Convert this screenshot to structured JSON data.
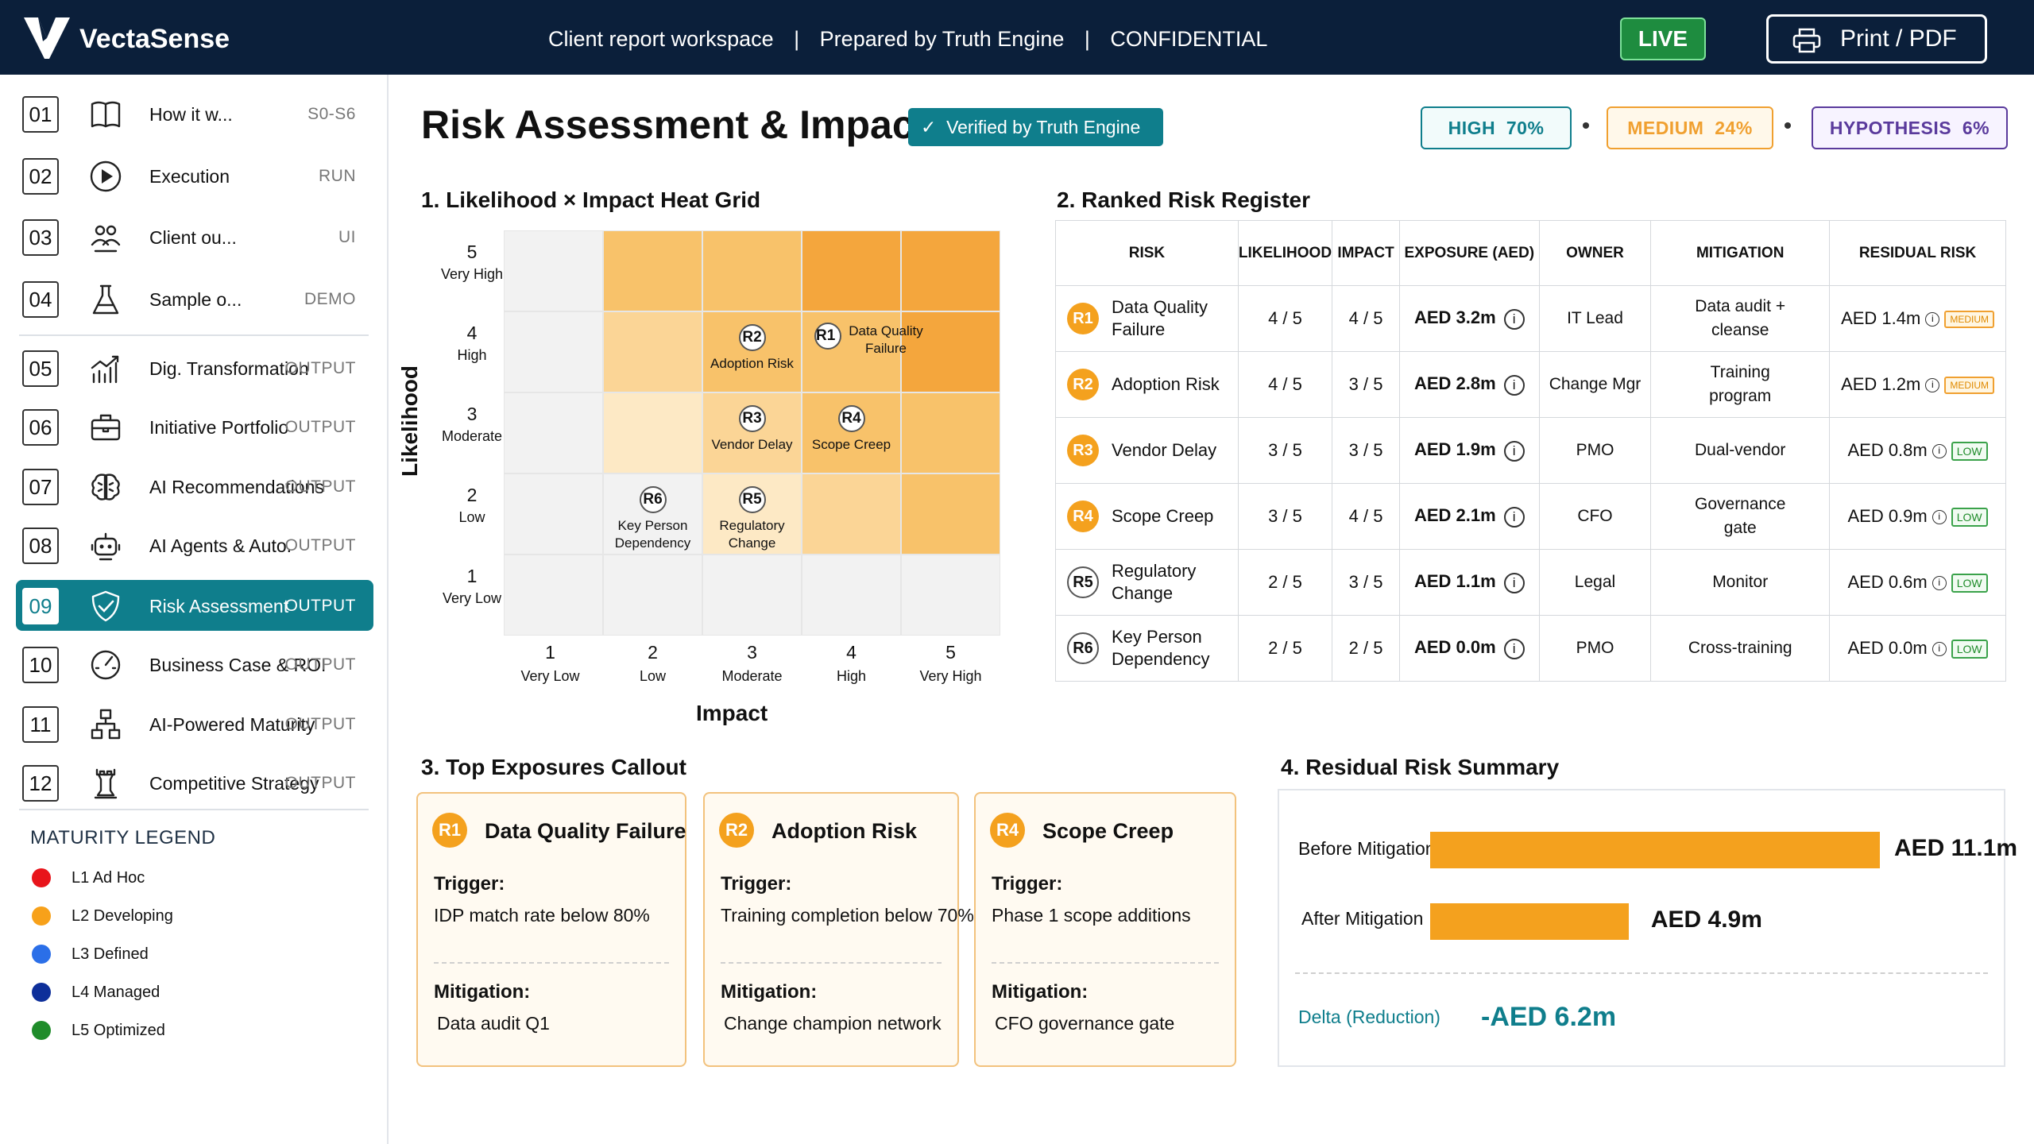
{
  "header": {
    "brand": "VectaSense",
    "context_parts": [
      "Client report workspace",
      "|",
      "Prepared by Truth Engine",
      "|",
      "CONFIDENTIAL"
    ],
    "live_label": "LIVE",
    "print_label": "Print / PDF",
    "logo_icon": "vectasense-logo",
    "print_icon": "printer-icon"
  },
  "sidebar": {
    "items": [
      {
        "num": "01",
        "label": "How it w...",
        "tag": "S0-S6",
        "icon": "book-icon"
      },
      {
        "num": "02",
        "label": "Execution",
        "tag": "RUN",
        "icon": "play-icon"
      },
      {
        "num": "03",
        "label": "Client ou...",
        "tag": "UI",
        "icon": "users-icon"
      },
      {
        "num": "04",
        "label": "Sample o...",
        "tag": "DEMO",
        "icon": "flask-icon"
      },
      {
        "num": "05",
        "label": "Dig. Transformation",
        "tag": "OUTPUT",
        "icon": "chart-up-icon"
      },
      {
        "num": "06",
        "label": "Initiative Portfolio",
        "tag": "OUTPUT",
        "icon": "briefcase-icon"
      },
      {
        "num": "07",
        "label": "AI Recommendations",
        "tag": "OUTPUT",
        "icon": "brain-icon"
      },
      {
        "num": "08",
        "label": "AI Agents & Auto.",
        "tag": "OUTPUT",
        "icon": "robot-icon"
      },
      {
        "num": "09",
        "label": "Risk Assessment",
        "tag": "OUTPUT",
        "icon": "shield-check-icon",
        "active": true
      },
      {
        "num": "10",
        "label": "Business Case & ROI",
        "tag": "OUTPUT",
        "icon": "gauge-icon"
      },
      {
        "num": "11",
        "label": "AI-Powered Maturity",
        "tag": "OUTPUT",
        "icon": "hierarchy-icon"
      },
      {
        "num": "12",
        "label": "Competitive Strategy",
        "tag": "OUTPUT",
        "icon": "chess-rook-icon"
      }
    ],
    "legend_title": "MATURITY LEGEND",
    "legend": [
      {
        "label": "L1 Ad Hoc",
        "color": "#e8141b"
      },
      {
        "label": "L2 Developing",
        "color": "#f7a11a"
      },
      {
        "label": "L3 Defined",
        "color": "#2b6fe8"
      },
      {
        "label": "L4 Managed",
        "color": "#0e2f9a"
      },
      {
        "label": "L5 Optimized",
        "color": "#1f8c2a"
      }
    ]
  },
  "page": {
    "title": "Risk Assessment & Impact",
    "verified": "Verified by Truth Engine",
    "confidence": [
      {
        "label": "HIGH",
        "value": "70%",
        "color": "#0f7e8c"
      },
      {
        "label": "MEDIUM",
        "value": "24%",
        "color": "#f0a030"
      },
      {
        "label": "HYPOTHESIS",
        "value": "6%",
        "color": "#5a3a9c"
      }
    ]
  },
  "heatmap": {
    "title": "1.  Likelihood × Impact Heat Grid",
    "y_axis": "Likelihood",
    "x_axis": "Impact",
    "y_ticks": [
      {
        "n": "5",
        "d": "Very High"
      },
      {
        "n": "4",
        "d": "High"
      },
      {
        "n": "3",
        "d": "Moderate"
      },
      {
        "n": "2",
        "d": "Low"
      },
      {
        "n": "1",
        "d": "Very Low"
      }
    ],
    "x_ticks": [
      {
        "n": "1",
        "d": "Very Low"
      },
      {
        "n": "2",
        "d": "Low"
      },
      {
        "n": "3",
        "d": "Moderate"
      },
      {
        "n": "4",
        "d": "High"
      },
      {
        "n": "5",
        "d": "Very High"
      }
    ],
    "markers": [
      {
        "id": "R1",
        "label": "Data Quality Failure"
      },
      {
        "id": "R2",
        "label": "Adoption Risk"
      },
      {
        "id": "R3",
        "label": "Vendor Delay"
      },
      {
        "id": "R4",
        "label": "Scope Creep"
      },
      {
        "id": "R5",
        "label": "Regulatory Change"
      },
      {
        "id": "R6",
        "label": "Key Person Dependency"
      }
    ]
  },
  "chart_data": {
    "type": "heatmap",
    "title": "Likelihood × Impact Heat Grid",
    "xlabel": "Impact",
    "ylabel": "Likelihood",
    "x_categories": [
      "1 Very Low",
      "2 Low",
      "3 Moderate",
      "4 High",
      "5 Very High"
    ],
    "y_categories": [
      "1 Very Low",
      "2 Low",
      "3 Moderate",
      "4 High",
      "5 Very High"
    ],
    "points": [
      {
        "id": "R1",
        "name": "Data Quality Failure",
        "likelihood": 4,
        "impact": 4
      },
      {
        "id": "R2",
        "name": "Adoption Risk",
        "likelihood": 4,
        "impact": 3
      },
      {
        "id": "R3",
        "name": "Vendor Delay",
        "likelihood": 3,
        "impact": 3
      },
      {
        "id": "R4",
        "name": "Scope Creep",
        "likelihood": 3,
        "impact": 4
      },
      {
        "id": "R5",
        "name": "Regulatory Change",
        "likelihood": 2,
        "impact": 3
      },
      {
        "id": "R6",
        "name": "Key Person Dependency",
        "likelihood": 2,
        "impact": 2
      }
    ],
    "colors": [
      "#f2f2f2",
      "#fde9c5",
      "#fbd596",
      "#f8c26a",
      "#f4a63d"
    ]
  },
  "register": {
    "title": "2.  Ranked Risk Register",
    "headers": [
      "RISK",
      "LIKELIHOOD",
      "IMPACT",
      "EXPOSURE (AED)",
      "OWNER",
      "MITIGATION",
      "RESIDUAL RISK"
    ],
    "rows": [
      {
        "id": "R1",
        "risk": "Data Quality Failure",
        "likelihood": "4 / 5",
        "impact": "4 / 5",
        "exposure": "AED 3.2m",
        "owner": "IT Lead",
        "mitigation": "Data audit + cleanse",
        "residual": "AED 1.4m",
        "level": "MEDIUM",
        "hot": true
      },
      {
        "id": "R2",
        "risk": "Adoption Risk",
        "likelihood": "4 / 5",
        "impact": "3 / 5",
        "exposure": "AED 2.8m",
        "owner": "Change Mgr",
        "mitigation": "Training program",
        "residual": "AED 1.2m",
        "level": "MEDIUM",
        "hot": true
      },
      {
        "id": "R3",
        "risk": "Vendor Delay",
        "likelihood": "3 / 5",
        "impact": "3 / 5",
        "exposure": "AED 1.9m",
        "owner": "PMO",
        "mitigation": "Dual-vendor",
        "residual": "AED 0.8m",
        "level": "LOW",
        "hot": true
      },
      {
        "id": "R4",
        "risk": "Scope Creep",
        "likelihood": "3 / 5",
        "impact": "4 / 5",
        "exposure": "AED 2.1m",
        "owner": "CFO",
        "mitigation": "Governance gate",
        "residual": "AED 0.9m",
        "level": "LOW",
        "hot": true
      },
      {
        "id": "R5",
        "risk": "Regulatory Change",
        "likelihood": "2 / 5",
        "impact": "3 / 5",
        "exposure": "AED 1.1m",
        "owner": "Legal",
        "mitigation": "Monitor",
        "residual": "AED 0.6m",
        "level": "LOW",
        "hot": false
      },
      {
        "id": "R6",
        "risk": "Key Person Dependency",
        "likelihood": "2 / 5",
        "impact": "2 / 5",
        "exposure": "AED 0.0m",
        "owner": "PMO",
        "mitigation": "Cross-training",
        "residual": "AED 0.0m",
        "level": "LOW",
        "hot": false
      }
    ]
  },
  "callouts": {
    "title": "3.  Top Exposures Callout",
    "trigger_label": "Trigger:",
    "mitigation_label": "Mitigation:",
    "cards": [
      {
        "id": "R1",
        "name": "Data Quality Failure",
        "trigger": "IDP match rate below 80%",
        "mitigation": "Data audit Q1"
      },
      {
        "id": "R2",
        "name": "Adoption Risk",
        "trigger": "Training completion below 70%",
        "mitigation": "Change champion network"
      },
      {
        "id": "R4",
        "name": "Scope Creep",
        "trigger": "Phase 1 scope additions",
        "mitigation": "CFO governance gate"
      }
    ]
  },
  "summary": {
    "title": "4.  Residual Risk Summary",
    "before_label": "Before Mitigation",
    "before_value": "AED 11.1m",
    "before_amount": 11.1,
    "after_label": "After Mitigation",
    "after_value": "AED 4.9m",
    "after_amount": 4.9,
    "delta_label": "Delta (Reduction)",
    "delta_value": "-AED 6.2m"
  }
}
